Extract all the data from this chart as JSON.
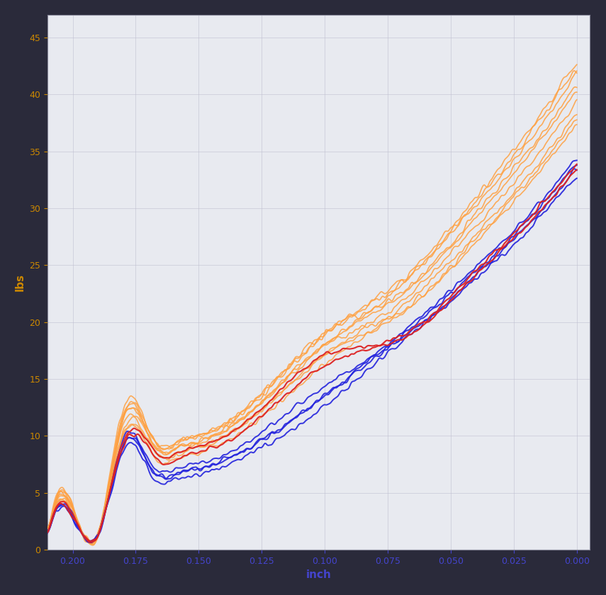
{
  "bg_outer": "#1a1a2e",
  "bg_plot": "#e8e8f0",
  "grid_color": "#c0c0d0",
  "xlabel": "inch",
  "ylabel": "lbs",
  "xlabel_color": "#4444cc",
  "ylabel_color": "#cc8800",
  "tick_color_x": "#4444cc",
  "tick_color_y": "#cc8800",
  "xlim": [
    0.21,
    -0.005
  ],
  "ylim": [
    0,
    47
  ],
  "xticks": [
    0.2,
    0.175,
    0.15,
    0.125,
    0.1,
    0.075,
    0.05,
    0.025,
    0.0
  ],
  "yticks": [
    0,
    5,
    10,
    15,
    20,
    25,
    30,
    35,
    40,
    45
  ],
  "orange_color": "#FFA040",
  "blue_color": "#2222DD",
  "red_color": "#DD2222",
  "orange_alpha": 0.85,
  "blue_alpha": 0.9,
  "red_alpha": 0.95,
  "line_width": 1.2
}
